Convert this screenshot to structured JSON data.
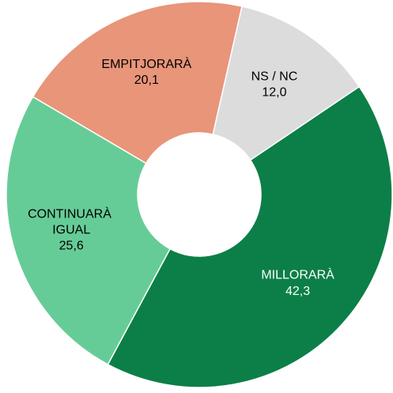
{
  "chart_data": {
    "type": "donut",
    "categories": [
      "MILLORARÀ",
      "CONTINUARÀ IGUAL",
      "EMPITJORARÀ",
      "NS / NC"
    ],
    "values": [
      42.3,
      25.6,
      20.1,
      12.0
    ],
    "value_labels": [
      "42,3",
      "25,6",
      "20,1",
      "12,0"
    ],
    "colors": [
      "#0b7f47",
      "#66cc97",
      "#e8957a",
      "#dcdcdc"
    ],
    "label_colors": [
      "#ffffff",
      "#000000",
      "#000000",
      "#000000"
    ]
  }
}
